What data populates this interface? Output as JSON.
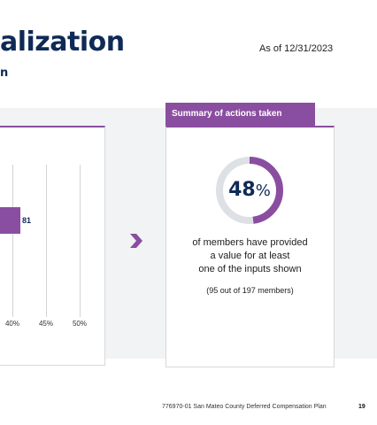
{
  "header": {
    "title": "alization",
    "subtitle": "n",
    "as_of": "As of 12/31/2023"
  },
  "colors": {
    "accent": "#8a4ea0",
    "navy": "#0f2a56",
    "band": "#f1f3f4",
    "donut_track": "#dde1e6"
  },
  "chart_data": {
    "type": "bar",
    "orientation": "horizontal",
    "x_ticks": [
      "40%",
      "45%",
      "50%"
    ],
    "bar_label": "81",
    "grid": true
  },
  "summary": {
    "tab_label": "Summary of actions taken",
    "percent_value": "48",
    "percent_symbol": "%",
    "percent_fraction": 0.48,
    "description_lines": [
      "of members have provided",
      "a value for at least",
      "one of the inputs shown"
    ],
    "members_note": "(95 out of 197 members)"
  },
  "arrow_icon": "chevron-right-icon",
  "footer": {
    "text": "776970-01 San Mateo County Deferred Compensation Plan",
    "page_number": "19"
  }
}
